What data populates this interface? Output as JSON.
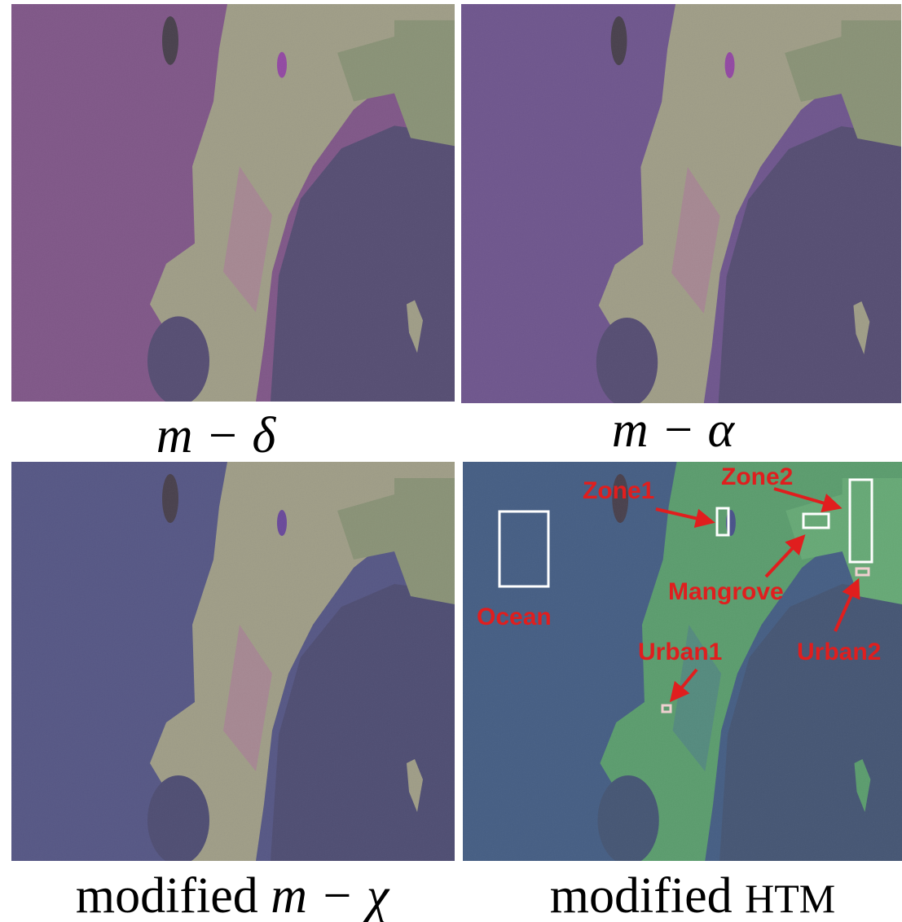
{
  "panels": [
    {
      "caption": {
        "math": "m − δ"
      }
    },
    {
      "caption": {
        "math": "m − α"
      }
    },
    {
      "caption": {
        "prefix": "modified",
        "math": "m − χ"
      }
    },
    {
      "caption": {
        "prefix": "modified",
        "math": "HTM"
      }
    }
  ],
  "annotations": [
    {
      "label": "Zone1"
    },
    {
      "label": "Zone2"
    },
    {
      "label": "Ocean"
    },
    {
      "label": "Mangrove"
    },
    {
      "label": "Urban1"
    },
    {
      "label": "Urban2"
    }
  ]
}
